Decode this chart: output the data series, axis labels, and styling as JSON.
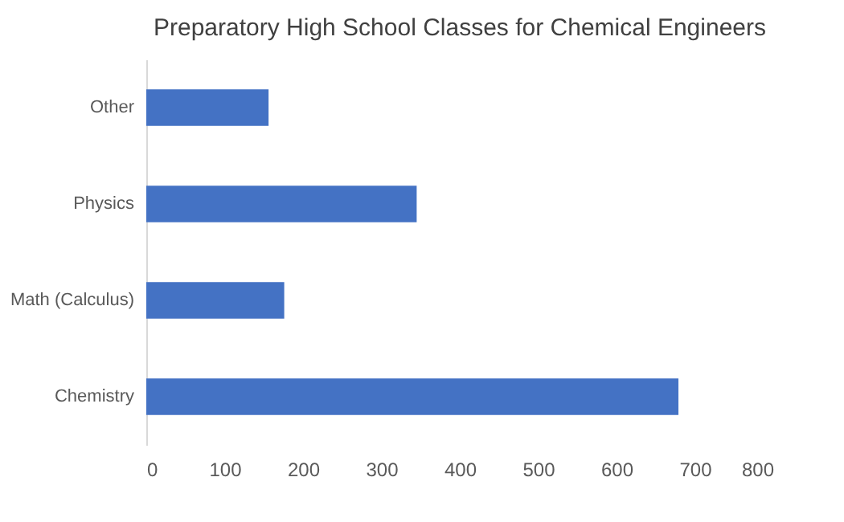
{
  "chart_data": {
    "type": "bar",
    "orientation": "horizontal",
    "title": "Preparatory  High School  Classes for Chemical Engineers",
    "categories": [
      "Other",
      "Physics",
      "Math (Calculus)",
      "Chemistry"
    ],
    "values": [
      156,
      345,
      176,
      679
    ],
    "color": "#4472c4",
    "xlim": [
      0,
      800
    ],
    "xticks": [
      0,
      100,
      200,
      300,
      400,
      500,
      600,
      700,
      800
    ],
    "grid": false
  }
}
